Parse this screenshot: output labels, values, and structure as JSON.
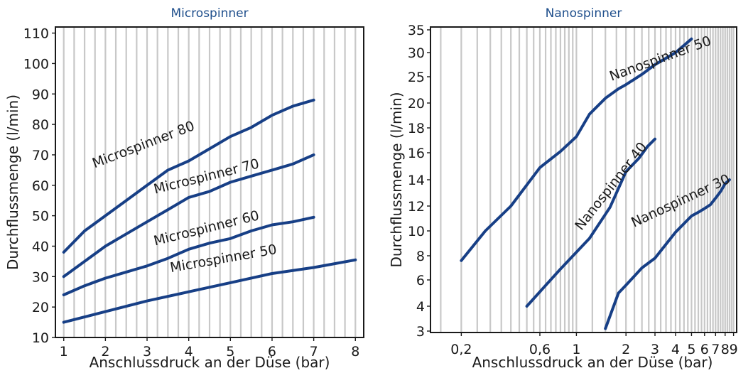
{
  "chart_data": [
    {
      "type": "line",
      "title": "Microspinner",
      "xlabel": "Anschlussdruck an der Düse (bar)",
      "ylabel": "Durchflussmenge (l/min)",
      "xlim": [
        0.8,
        8.2
      ],
      "ylim": [
        10,
        112
      ],
      "x_ticks": [
        "1",
        "2",
        "3",
        "4",
        "5",
        "6",
        "7",
        "8"
      ],
      "y_ticks": [
        "10",
        "20",
        "30",
        "40",
        "50",
        "60",
        "70",
        "80",
        "90",
        "100",
        "110"
      ],
      "grid": true,
      "series": [
        {
          "name": "Microspinner 80",
          "x": [
            1,
            1.5,
            2,
            2.5,
            3,
            3.5,
            4,
            4.5,
            5,
            5.5,
            6,
            6.5,
            7
          ],
          "y": [
            38,
            45,
            50,
            55,
            60,
            65,
            68,
            72,
            76,
            79,
            83,
            86,
            88
          ]
        },
        {
          "name": "Microspinner 70",
          "x": [
            1,
            1.5,
            2,
            2.5,
            3,
            3.5,
            4,
            4.5,
            5,
            5.5,
            6,
            6.5,
            7
          ],
          "y": [
            30,
            35,
            40,
            44,
            48,
            52,
            56,
            58,
            61,
            63,
            65,
            67,
            70
          ]
        },
        {
          "name": "Microspinner 60",
          "x": [
            1,
            1.5,
            2,
            2.5,
            3,
            3.5,
            4,
            4.5,
            5,
            5.5,
            6,
            6.5,
            7
          ],
          "y": [
            24,
            27,
            29.5,
            31.5,
            33.5,
            36,
            39,
            41,
            42.5,
            45,
            47,
            48,
            49.5
          ]
        },
        {
          "name": "Microspinner 50",
          "x": [
            1,
            2,
            3,
            4,
            5,
            6,
            7,
            8
          ],
          "y": [
            15,
            18.5,
            22,
            25,
            28,
            31,
            33,
            35.5
          ]
        }
      ]
    },
    {
      "type": "line",
      "title": "Nanospinner",
      "xlabel": "Anschlussdruck an der Düse (bar)",
      "ylabel": "Durchflussmenge (l/min)",
      "xscale": "log",
      "xlim": [
        0.13,
        9.4
      ],
      "y_ticks": [
        "3",
        "4",
        "6",
        "8",
        "10",
        "12",
        "14",
        "16",
        "18",
        "20",
        "25",
        "30",
        "35"
      ],
      "x_ticks": [
        "0,2",
        "0,6",
        "1",
        "2",
        "3",
        "4",
        "5",
        "6",
        "7",
        "8",
        "9"
      ],
      "grid": true,
      "series": [
        {
          "name": "Nanospinner 50",
          "x": [
            0.2,
            0.28,
            0.4,
            0.6,
            0.8,
            1.0,
            1.2,
            1.5,
            1.8,
            2.0,
            2.5,
            3.0,
            4.0,
            5.0
          ],
          "y": [
            7.6,
            10,
            12,
            14.9,
            16.1,
            17.3,
            19.1,
            20.9,
            22.7,
            23.5,
            25.5,
            27.5,
            30,
            33
          ]
        },
        {
          "name": "Nanospinner 40",
          "x": [
            0.5,
            0.8,
            1.2,
            1.6,
            2.0,
            2.4,
            2.7,
            3.0
          ],
          "y": [
            4,
            6.9,
            9.4,
            11.9,
            14.6,
            15.6,
            16.5,
            17.1
          ]
        },
        {
          "name": "Nanospinner 30",
          "x": [
            1.5,
            1.8,
            2.0,
            2.5,
            3.0,
            4.0,
            5.0,
            5.5,
            6.0,
            6.5,
            7.0,
            7.5,
            8.0,
            8.5
          ],
          "y": [
            3.1,
            5.0,
            5.6,
            7.0,
            7.8,
            9.9,
            11.2,
            11.5,
            11.8,
            12.1,
            12.6,
            13.1,
            13.7,
            14.0
          ]
        }
      ]
    }
  ]
}
